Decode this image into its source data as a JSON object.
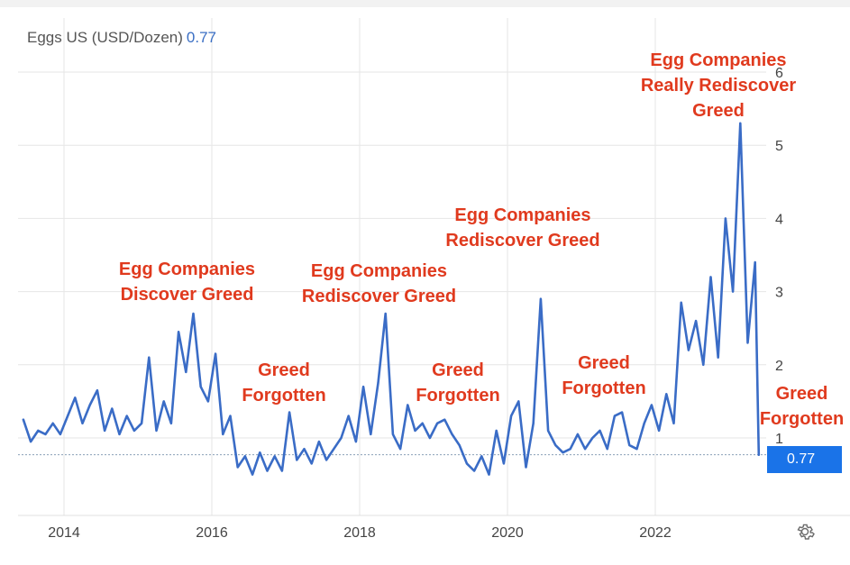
{
  "header": {
    "series_label": "Eggs US (USD/Dozen)",
    "latest_value": "0.77"
  },
  "badge": {
    "value": "0.77"
  },
  "icons": {
    "settings": "gear-icon"
  },
  "colors": {
    "line": "#3a6cc6",
    "annotation": "#e03a1e",
    "badge": "#1a73e8",
    "grid": "#e6e6e6"
  },
  "annotations": [
    {
      "lines": [
        "Egg Companies",
        "Discover Greed"
      ]
    },
    {
      "lines": [
        "Greed",
        "Forgotten"
      ]
    },
    {
      "lines": [
        "Egg Companies",
        "Rediscover Greed"
      ]
    },
    {
      "lines": [
        "Greed",
        "Forgotten"
      ]
    },
    {
      "lines": [
        "Egg Companies",
        "Rediscover Greed"
      ]
    },
    {
      "lines": [
        "Greed",
        "Forgotten"
      ]
    },
    {
      "lines": [
        "Egg Companies",
        "Really Rediscover",
        "Greed"
      ]
    },
    {
      "lines": [
        "Greed",
        "Forgotten"
      ]
    }
  ],
  "chart_data": {
    "type": "line",
    "title": "Eggs US (USD/Dozen)",
    "xlabel": "",
    "ylabel": "",
    "x_ticks": [
      "2014",
      "2016",
      "2018",
      "2020",
      "2022"
    ],
    "y_ticks": [
      "1",
      "2",
      "3",
      "4",
      "5",
      "6"
    ],
    "ylim": [
      0.0,
      6.5
    ],
    "xlim": [
      2013.45,
      2023.4
    ],
    "latest": 0.77,
    "series": [
      {
        "name": "Eggs US (USD/Dozen)",
        "x": [
          2013.45,
          2013.55,
          2013.65,
          2013.75,
          2013.85,
          2013.95,
          2014.05,
          2014.15,
          2014.25,
          2014.35,
          2014.45,
          2014.55,
          2014.65,
          2014.75,
          2014.85,
          2014.95,
          2015.05,
          2015.15,
          2015.25,
          2015.35,
          2015.45,
          2015.55,
          2015.65,
          2015.75,
          2015.85,
          2015.95,
          2016.05,
          2016.15,
          2016.25,
          2016.35,
          2016.45,
          2016.55,
          2016.65,
          2016.75,
          2016.85,
          2016.95,
          2017.05,
          2017.15,
          2017.25,
          2017.35,
          2017.45,
          2017.55,
          2017.65,
          2017.75,
          2017.85,
          2017.95,
          2018.05,
          2018.15,
          2018.25,
          2018.35,
          2018.45,
          2018.55,
          2018.65,
          2018.75,
          2018.85,
          2018.95,
          2019.05,
          2019.15,
          2019.25,
          2019.35,
          2019.45,
          2019.55,
          2019.65,
          2019.75,
          2019.85,
          2019.95,
          2020.05,
          2020.15,
          2020.25,
          2020.35,
          2020.45,
          2020.55,
          2020.65,
          2020.75,
          2020.85,
          2020.95,
          2021.05,
          2021.15,
          2021.25,
          2021.35,
          2021.45,
          2021.55,
          2021.65,
          2021.75,
          2021.85,
          2021.95,
          2022.05,
          2022.15,
          2022.25,
          2022.35,
          2022.45,
          2022.55,
          2022.65,
          2022.75,
          2022.85,
          2022.95,
          2023.05,
          2023.15,
          2023.25,
          2023.35,
          2023.4
        ],
        "values": [
          1.25,
          0.95,
          1.1,
          1.05,
          1.2,
          1.05,
          1.3,
          1.55,
          1.2,
          1.45,
          1.65,
          1.1,
          1.4,
          1.05,
          1.3,
          1.1,
          1.2,
          2.1,
          1.1,
          1.5,
          1.2,
          2.45,
          1.9,
          2.7,
          1.7,
          1.5,
          2.15,
          1.05,
          1.3,
          0.6,
          0.75,
          0.5,
          0.8,
          0.55,
          0.75,
          0.55,
          1.35,
          0.7,
          0.85,
          0.65,
          0.95,
          0.7,
          0.85,
          1.0,
          1.3,
          0.95,
          1.7,
          1.05,
          1.75,
          2.7,
          1.05,
          0.85,
          1.45,
          1.1,
          1.2,
          1.0,
          1.2,
          1.25,
          1.05,
          0.9,
          0.65,
          0.55,
          0.75,
          0.5,
          1.1,
          0.65,
          1.3,
          1.5,
          0.6,
          1.2,
          2.9,
          1.1,
          0.9,
          0.8,
          0.85,
          1.05,
          0.85,
          1.0,
          1.1,
          0.85,
          1.3,
          1.35,
          0.9,
          0.85,
          1.2,
          1.45,
          1.1,
          1.6,
          1.2,
          2.85,
          2.2,
          2.6,
          2.0,
          3.2,
          2.1,
          4.0,
          3.0,
          5.3,
          2.3,
          3.4,
          0.77
        ]
      }
    ]
  }
}
